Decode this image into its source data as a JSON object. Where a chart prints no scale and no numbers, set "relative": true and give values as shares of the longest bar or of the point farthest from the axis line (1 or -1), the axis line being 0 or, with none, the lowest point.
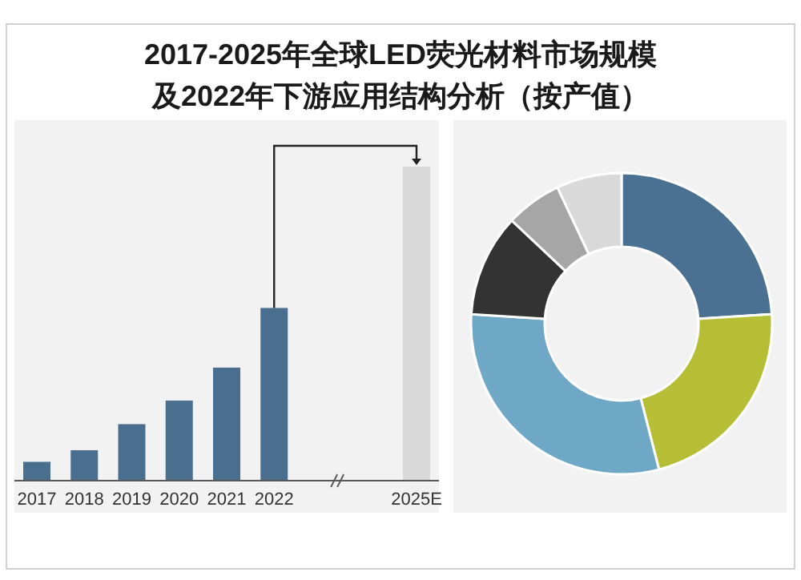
{
  "chart_data": [
    {
      "type": "bar",
      "title": "2017-2025年全球LED荧光材料市场规模",
      "subtitle": "及2022年下游应用结构分析（按产值）",
      "relative": true,
      "categories": [
        "2017",
        "2018",
        "2019",
        "2020",
        "2021",
        "2022",
        null,
        null,
        "2025E"
      ],
      "values": [
        0.06,
        0.097,
        0.18,
        0.255,
        0.36,
        0.55,
        null,
        null,
        1
      ],
      "colors": [
        "#4a6f8e",
        "#4a6f8e",
        "#4a6f8e",
        "#4a6f8e",
        "#4a6f8e",
        "#4a6f8e",
        null,
        null,
        "#d9d9d9"
      ]
    },
    {
      "type": "donut",
      "categories": [
        null,
        null,
        null,
        null,
        null,
        null
      ],
      "values": [
        24,
        22,
        30,
        11,
        6,
        7
      ],
      "colors": [
        "#4a7092",
        "#b5be34",
        "#6fa8c7",
        "#333333",
        "#a6a6a6",
        "#d9d9d9"
      ]
    }
  ]
}
